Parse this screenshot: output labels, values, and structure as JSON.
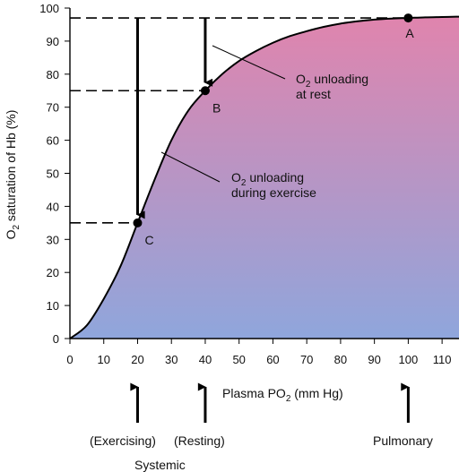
{
  "chart_data": {
    "type": "area",
    "xlabel": "Plasma PO",
    "xlabel_sub": "2",
    "xlabel_tail": " (mm Hg)",
    "ylabel": "O",
    "ylabel_sub": "2",
    "ylabel_tail": " saturation of Hb (%)",
    "xlim": [
      0,
      115
    ],
    "ylim": [
      0,
      100
    ],
    "x_ticks": [
      0,
      10,
      20,
      30,
      40,
      50,
      60,
      70,
      80,
      90,
      100,
      110
    ],
    "y_ticks": [
      0,
      10,
      20,
      30,
      40,
      50,
      60,
      70,
      80,
      90,
      100
    ],
    "grid": false,
    "fill_gradient": {
      "top": "#e084ad",
      "bottom": "#8fa6dc"
    },
    "curve": {
      "x": [
        0,
        5,
        10,
        15,
        20,
        25,
        30,
        35,
        40,
        45,
        50,
        55,
        60,
        65,
        70,
        75,
        80,
        85,
        90,
        95,
        100,
        105,
        110,
        115
      ],
      "y": [
        0,
        4,
        12,
        22,
        35,
        48,
        60,
        69,
        75,
        80,
        84,
        87,
        89.5,
        91.5,
        93,
        94.3,
        95.3,
        96,
        96.5,
        96.8,
        97,
        97.2,
        97.3,
        97.4
      ]
    },
    "points": [
      {
        "id": "A",
        "label": "A",
        "x": 100,
        "y": 97
      },
      {
        "id": "B",
        "label": "B",
        "x": 40,
        "y": 75
      },
      {
        "id": "C",
        "label": "C",
        "x": 20,
        "y": 35
      }
    ],
    "annotations": {
      "rest_line1_pre": "O",
      "rest_line1_sub": "2",
      "rest_line1_tail": " unloading",
      "rest_line2": "at rest",
      "exercise_line1_pre": "O",
      "exercise_line1_sub": "2",
      "exercise_line1_tail": " unloading",
      "exercise_line2": "during exercise"
    },
    "bottom_labels": {
      "exercising": "(Exercising)",
      "resting": "(Resting)",
      "pulmonary": "Pulmonary",
      "systemic": "Systemic"
    },
    "bottom_arrows_x": [
      20,
      40,
      100
    ]
  }
}
